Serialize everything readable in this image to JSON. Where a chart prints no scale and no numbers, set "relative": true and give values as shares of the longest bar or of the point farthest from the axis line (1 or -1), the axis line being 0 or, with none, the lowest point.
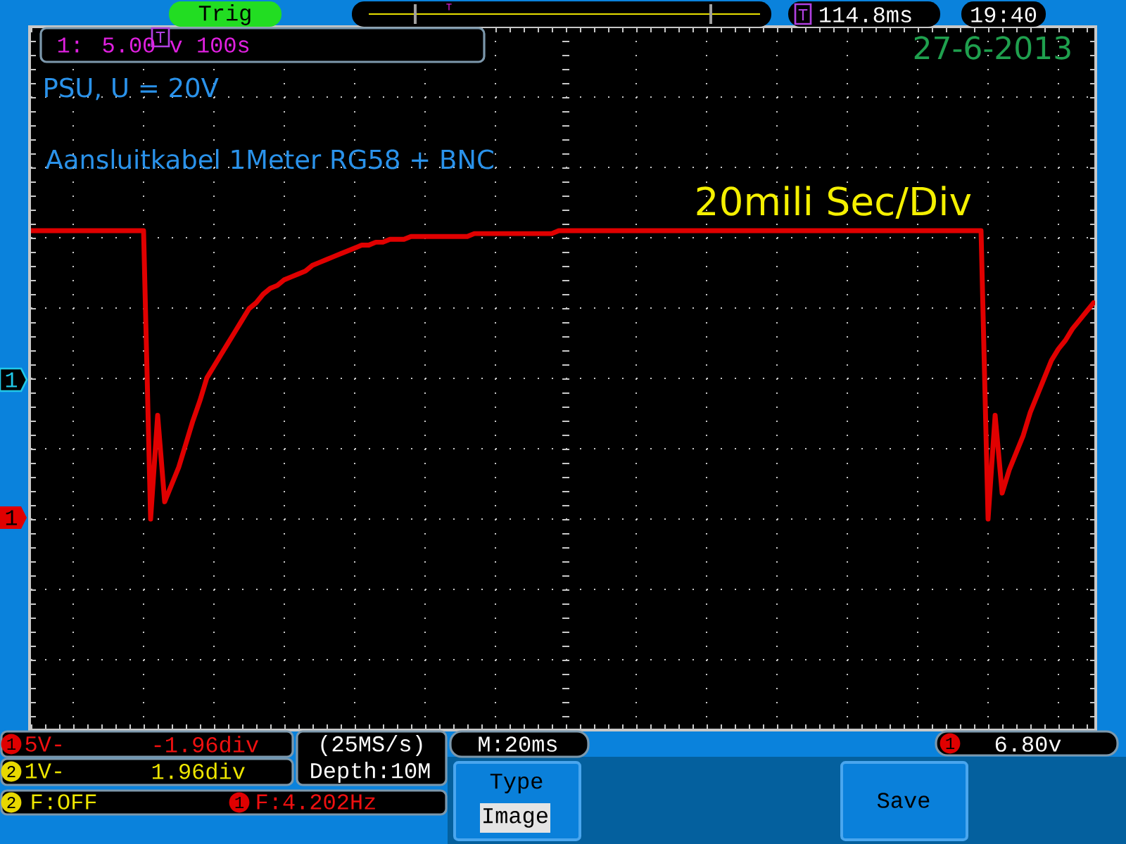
{
  "chart_data": {
    "type": "line",
    "relative": true,
    "grid": true,
    "tick_labels": false,
    "color": "#e00000",
    "categories": [
      null,
      null,
      null,
      null,
      null,
      null,
      null,
      null,
      null,
      null,
      null,
      null,
      null,
      null,
      null,
      null,
      null,
      null,
      null,
      null,
      null,
      null,
      null,
      null,
      null,
      null,
      null,
      null,
      null,
      null,
      null,
      null,
      null,
      null,
      null,
      null,
      null,
      null,
      null,
      null,
      null,
      null,
      null,
      null,
      null,
      null,
      null,
      null,
      null,
      null,
      null,
      null,
      null,
      null,
      null,
      null,
      null,
      null,
      null,
      null,
      null,
      null,
      null,
      null,
      null,
      null,
      null,
      null,
      null,
      null,
      null,
      null,
      null,
      null,
      null,
      null,
      null,
      null,
      null,
      null,
      null,
      null,
      null,
      null,
      null,
      null,
      null,
      null,
      null,
      null,
      null,
      null,
      null,
      null,
      null,
      null,
      null,
      null,
      null,
      null,
      null,
      null,
      null,
      null,
      null,
      null,
      null,
      null,
      null,
      null,
      null,
      null,
      null,
      null,
      null,
      null,
      null,
      null,
      null,
      null,
      null,
      null,
      null,
      null,
      null,
      null,
      null,
      null,
      null,
      null,
      null,
      null,
      null,
      null,
      null,
      null,
      null,
      null,
      null,
      null,
      null,
      null,
      null,
      null,
      null,
      null,
      null,
      null,
      null,
      null,
      null,
      null
    ],
    "values": [
      1,
      1,
      1,
      1,
      1,
      1,
      1,
      1,
      1,
      1,
      1,
      1,
      1,
      1,
      1,
      1,
      1,
      0,
      0.36,
      0.06,
      0.12,
      0.18,
      0.26,
      0.34,
      0.41,
      0.49,
      0.53,
      0.57,
      0.61,
      0.65,
      0.69,
      0.73,
      0.75,
      0.78,
      0.8,
      0.81,
      0.83,
      0.84,
      0.85,
      0.86,
      0.88,
      0.89,
      0.9,
      0.91,
      0.92,
      0.93,
      0.94,
      0.95,
      0.95,
      0.96,
      0.96,
      0.97,
      0.97,
      0.97,
      0.98,
      0.98,
      0.98,
      0.98,
      0.98,
      0.98,
      0.98,
      0.98,
      0.98,
      0.99,
      0.99,
      0.99,
      0.99,
      0.99,
      0.99,
      0.99,
      0.99,
      0.99,
      0.99,
      0.99,
      0.99,
      1,
      1,
      1,
      1,
      1,
      1,
      1,
      1,
      1,
      1,
      1,
      1,
      1,
      1,
      1,
      1,
      1,
      1,
      1,
      1,
      1,
      1,
      1,
      1,
      1,
      1,
      1,
      1,
      1,
      1,
      1,
      1,
      1,
      1,
      1,
      1,
      1,
      1,
      1,
      1,
      1,
      1,
      1,
      1,
      1,
      1,
      1,
      1,
      1,
      1,
      1,
      1,
      1,
      1,
      1,
      1,
      1,
      1,
      1,
      1,
      1,
      0,
      0.36,
      0.09,
      0.17,
      0.23,
      0.29,
      0.37,
      0.43,
      0.49,
      0.55,
      0.59,
      0.62,
      0.66,
      0.69,
      0.72,
      0.75
    ],
    "annotations": [
      "Trig",
      "T",
      "T",
      "114.8ms",
      "19:40",
      "1: 5.00 v 100s",
      "T",
      "27-6-2013",
      "PSU, U = 20V",
      "Aansluitkabel 1Meter RG58 + BNC",
      "20mili Sec/Div",
      "1",
      "1",
      "1",
      "5V-",
      "-1.96div",
      "2",
      "1V-",
      "1.96div",
      "(25MS/s)",
      "Depth:10M",
      "M:20ms",
      "1",
      "6.80v",
      "2",
      "F:OFF",
      "1",
      "F:4.202Hz",
      "Type",
      "Image",
      "Save"
    ]
  }
}
